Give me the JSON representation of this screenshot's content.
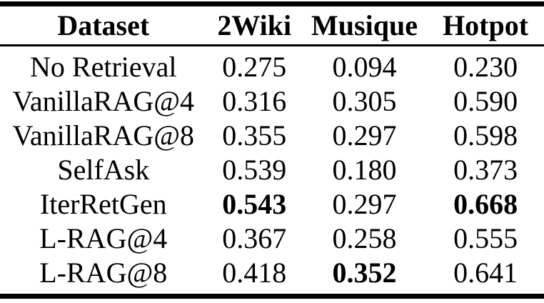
{
  "table": {
    "columns": [
      {
        "label": "Dataset"
      },
      {
        "label": "2Wiki"
      },
      {
        "label": "Musique"
      },
      {
        "label": "Hotpot"
      }
    ],
    "rows": [
      {
        "label": "No Retrieval",
        "values": [
          {
            "text": "0.275",
            "bold": false
          },
          {
            "text": "0.094",
            "bold": false
          },
          {
            "text": "0.230",
            "bold": false
          }
        ]
      },
      {
        "label": "VanillaRAG@4",
        "values": [
          {
            "text": "0.316",
            "bold": false
          },
          {
            "text": "0.305",
            "bold": false
          },
          {
            "text": "0.590",
            "bold": false
          }
        ]
      },
      {
        "label": "VanillaRAG@8",
        "values": [
          {
            "text": "0.355",
            "bold": false
          },
          {
            "text": "0.297",
            "bold": false
          },
          {
            "text": "0.598",
            "bold": false
          }
        ]
      },
      {
        "label": "SelfAsk",
        "values": [
          {
            "text": "0.539",
            "bold": false
          },
          {
            "text": "0.180",
            "bold": false
          },
          {
            "text": "0.373",
            "bold": false
          }
        ]
      },
      {
        "label": "IterRetGen",
        "values": [
          {
            "text": "0.543",
            "bold": true
          },
          {
            "text": "0.297",
            "bold": false
          },
          {
            "text": "0.668",
            "bold": true
          }
        ]
      },
      {
        "label": "L-RAG@4",
        "values": [
          {
            "text": "0.367",
            "bold": false
          },
          {
            "text": "0.258",
            "bold": false
          },
          {
            "text": "0.555",
            "bold": false
          }
        ]
      },
      {
        "label": "L-RAG@8",
        "values": [
          {
            "text": "0.418",
            "bold": false
          },
          {
            "text": "0.352",
            "bold": true
          },
          {
            "text": "0.641",
            "bold": false
          }
        ]
      }
    ],
    "colors": {
      "text": "#000000",
      "background": "#ffffff",
      "rule": "#000000"
    }
  }
}
